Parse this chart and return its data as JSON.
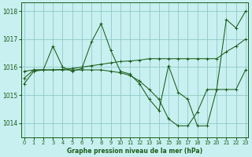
{
  "title": "Graphe pression niveau de la mer (hPa)",
  "bg_color": "#c8f0f0",
  "grid_color": "#90c8c8",
  "line_color": "#1a5c1a",
  "series": [
    {
      "x": [
        0,
        1,
        2,
        3,
        4,
        5,
        6,
        7,
        8,
        9,
        10,
        11,
        12,
        13,
        14,
        15,
        16,
        17,
        18,
        19,
        20,
        21,
        22,
        23
      ],
      "y": [
        1015.4,
        1015.85,
        1015.9,
        1016.75,
        1016.0,
        1015.85,
        1015.95,
        1016.9,
        1017.55,
        1016.6,
        1015.85,
        1015.75,
        1015.4,
        1014.85,
        1014.45,
        1016.05,
        1015.1,
        1014.85,
        1013.9,
        1013.9,
        1015.2,
        1015.2,
        1015.2,
        1015.9
      ]
    },
    {
      "x": [
        0,
        1,
        2,
        3,
        4,
        5,
        6,
        7,
        8,
        9,
        10,
        11,
        12,
        13,
        14,
        15,
        16,
        17,
        18,
        19,
        20,
        21,
        22,
        23
      ],
      "y": [
        1015.85,
        1015.9,
        1015.9,
        1015.9,
        1015.92,
        1015.95,
        1016.0,
        1016.05,
        1016.1,
        1016.15,
        1016.2,
        1016.22,
        1016.25,
        1016.3,
        1016.3,
        1016.3,
        1016.3,
        1016.3,
        1016.3,
        1016.3,
        1016.3,
        1016.55,
        1016.75,
        1017.0
      ]
    },
    {
      "x": [
        0,
        1,
        2,
        3,
        4,
        5,
        6,
        7,
        8,
        9,
        10,
        11,
        12,
        13,
        14,
        15,
        16,
        17,
        18,
        19,
        20,
        21,
        22,
        23
      ],
      "y": [
        1015.6,
        1015.9,
        1015.9,
        1015.9,
        1015.9,
        1015.9,
        1015.9,
        1015.9,
        1015.9,
        1015.85,
        1015.8,
        1015.7,
        1015.5,
        1015.2,
        1014.85,
        1014.15,
        1013.9,
        1013.9,
        1014.4,
        1015.2,
        1015.2,
        1017.7,
        1017.4,
        1018.0
      ]
    }
  ],
  "ylim": [
    1013.5,
    1018.3
  ],
  "yticks": [
    1014,
    1015,
    1016,
    1017,
    1018
  ],
  "xlim": [
    -0.3,
    23.3
  ],
  "xticks": [
    0,
    1,
    2,
    3,
    4,
    5,
    6,
    7,
    8,
    9,
    10,
    11,
    12,
    13,
    14,
    15,
    16,
    17,
    18,
    19,
    20,
    21,
    22,
    23
  ]
}
